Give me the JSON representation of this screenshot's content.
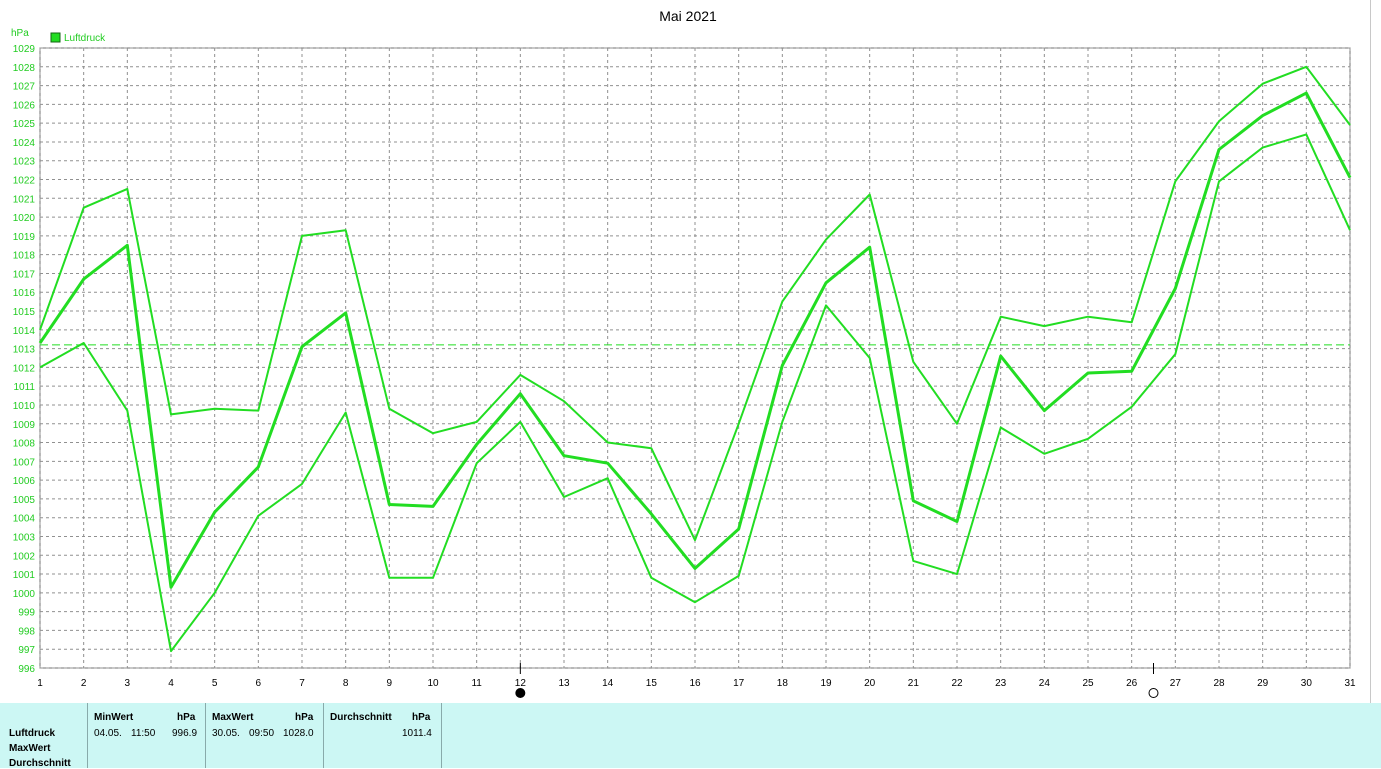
{
  "chart_data": {
    "type": "line",
    "title": "Mai 2021",
    "ylabel": "hPa",
    "legend": {
      "label": "Luftdruck",
      "color": "#22dd22",
      "placement": "top-left"
    },
    "ylim": [
      996,
      1029
    ],
    "xlim": [
      1,
      31
    ],
    "yticks": [
      996,
      997,
      998,
      999,
      1000,
      1001,
      1002,
      1003,
      1004,
      1005,
      1006,
      1007,
      1008,
      1009,
      1010,
      1011,
      1012,
      1013,
      1014,
      1015,
      1016,
      1017,
      1018,
      1019,
      1020,
      1021,
      1022,
      1023,
      1024,
      1025,
      1026,
      1027,
      1028,
      1029
    ],
    "x": [
      1,
      2,
      3,
      4,
      5,
      6,
      7,
      8,
      9,
      10,
      11,
      12,
      13,
      14,
      15,
      16,
      17,
      18,
      19,
      20,
      21,
      22,
      23,
      24,
      25,
      26,
      27,
      28,
      29,
      30,
      31
    ],
    "grid": true,
    "reference_line": {
      "value": 1013.2,
      "style": "dashed"
    },
    "series": [
      {
        "role": "max",
        "values": [
          1014,
          1020.5,
          1021.5,
          1009.5,
          1009.8,
          1009.7,
          1019,
          1019.3,
          1009.8,
          1008.5,
          1009.1,
          1011.6,
          1010.2,
          1008,
          1007.7,
          1002.8,
          1009,
          1015.5,
          1018.8,
          1021.2,
          1012.3,
          1009,
          1014.7,
          1014.2,
          1014.7,
          1014.4,
          1021.9,
          1025.1,
          1027.1,
          1028,
          1024.9
        ]
      },
      {
        "role": "average",
        "values": [
          1013.3,
          1016.7,
          1018.5,
          1000.3,
          1004.3,
          1006.7,
          1013.1,
          1014.9,
          1004.7,
          1004.6,
          1007.9,
          1010.6,
          1007.3,
          1006.9,
          1004.2,
          1001.3,
          1003.4,
          1012.1,
          1016.5,
          1018.4,
          1004.9,
          1003.8,
          1012.6,
          1009.7,
          1011.7,
          1011.8,
          1016.2,
          1023.6,
          1025.4,
          1026.6,
          1022.1
        ]
      },
      {
        "role": "min",
        "values": [
          1012,
          1013.3,
          1009.7,
          996.9,
          1000,
          1004.1,
          1005.8,
          1009.6,
          1000.8,
          1000.8,
          1006.9,
          1009.1,
          1005.1,
          1006.1,
          1000.8,
          999.5,
          1000.9,
          1009.1,
          1015.3,
          1012.5,
          1001.7,
          1001,
          1008.8,
          1007.4,
          1008.2,
          1009.9,
          1012.7,
          1021.9,
          1023.7,
          1024.4,
          1019.3
        ]
      }
    ],
    "moon_markers": [
      {
        "day": 12,
        "phase": "new"
      },
      {
        "day": 26.5,
        "phase": "full"
      }
    ]
  },
  "stats": {
    "row_labels": [
      "Luftdruck",
      "MaxWert",
      "Durchschnitt"
    ],
    "min": {
      "header": "MinWert",
      "unit": "hPa",
      "date": "04.05.",
      "time": "11:50",
      "value": "996.9"
    },
    "max": {
      "header": "MaxWert",
      "unit": "hPa",
      "date": "30.05.",
      "time": "09:50",
      "value": "1028.0"
    },
    "avg": {
      "header": "Durchschnitt",
      "unit": "hPa",
      "value": "1011.4"
    }
  },
  "colors": {
    "line": "#22dd22",
    "grid": "#909090",
    "panel": "#ccf7f4"
  }
}
